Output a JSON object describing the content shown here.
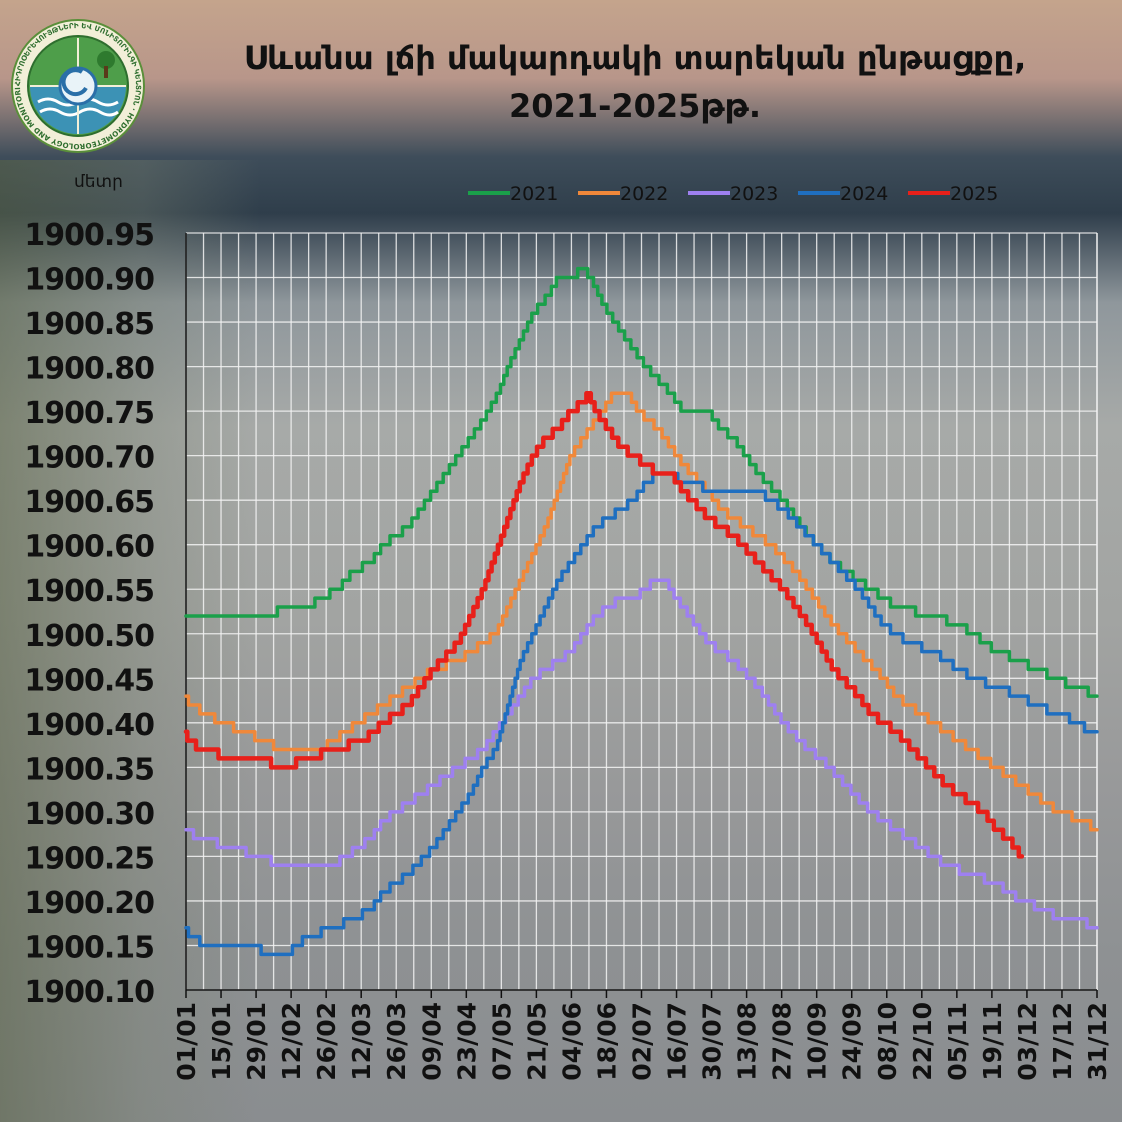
{
  "title_line1": "Սևանա լճի մակարդակի տարեկան ընթացքը,",
  "title_line2": "2021-2025թթ.",
  "logo_text": "ՀԻԴՐՈՕԵՐԵՎՈՒՅԹՆԵՐԻ ԵՎ ՄՈՆԻՏՈՐԻՆԳԻ ԿԵՆՏՐՈՆ · HYDROMETEOROLOGY AND MONITORING CENTER",
  "chart_data": {
    "type": "line",
    "ylabel": "մետր",
    "ylim": [
      1900.1,
      1900.95
    ],
    "yticks": [
      "1900.95",
      "1900.90",
      "1900.85",
      "1900.80",
      "1900.75",
      "1900.70",
      "1900.65",
      "1900.60",
      "1900.55",
      "1900.50",
      "1900.45",
      "1900.40",
      "1900.35",
      "1900.30",
      "1900.25",
      "1900.20",
      "1900.15",
      "1900.10"
    ],
    "xticks": [
      "01/01",
      "15/01",
      "29/01",
      "12/02",
      "26/02",
      "12/03",
      "26/03",
      "09/04",
      "23/04",
      "07/05",
      "21/05",
      "04/06",
      "18/06",
      "02/07",
      "16/07",
      "30/07",
      "13/08",
      "27/08",
      "10/09",
      "24/09",
      "08/10",
      "22/10",
      "05/11",
      "19/11",
      "03/12",
      "17/12",
      "31/12"
    ],
    "grid": true,
    "legend_position": "top",
    "x_unit": "day of year",
    "series": [
      {
        "name": "2021",
        "color": "#1aa04a",
        "points": [
          [
            1,
            1900.52
          ],
          [
            22,
            1900.52
          ],
          [
            35,
            1900.52
          ],
          [
            40,
            1900.53
          ],
          [
            50,
            1900.53
          ],
          [
            55,
            1900.54
          ],
          [
            62,
            1900.55
          ],
          [
            68,
            1900.57
          ],
          [
            75,
            1900.58
          ],
          [
            80,
            1900.6
          ],
          [
            90,
            1900.62
          ],
          [
            100,
            1900.66
          ],
          [
            110,
            1900.7
          ],
          [
            120,
            1900.74
          ],
          [
            126,
            1900.77
          ],
          [
            130,
            1900.8
          ],
          [
            135,
            1900.83
          ],
          [
            140,
            1900.86
          ],
          [
            146,
            1900.88
          ],
          [
            150,
            1900.9
          ],
          [
            155,
            1900.9
          ],
          [
            160,
            1900.91
          ],
          [
            163,
            1900.9
          ],
          [
            168,
            1900.87
          ],
          [
            175,
            1900.84
          ],
          [
            185,
            1900.8
          ],
          [
            195,
            1900.77
          ],
          [
            200,
            1900.75
          ],
          [
            210,
            1900.75
          ],
          [
            215,
            1900.73
          ],
          [
            220,
            1900.72
          ],
          [
            230,
            1900.68
          ],
          [
            240,
            1900.65
          ],
          [
            250,
            1900.61
          ],
          [
            260,
            1900.58
          ],
          [
            270,
            1900.56
          ],
          [
            280,
            1900.54
          ],
          [
            285,
            1900.53
          ],
          [
            300,
            1900.52
          ],
          [
            310,
            1900.51
          ],
          [
            316,
            1900.5
          ],
          [
            325,
            1900.48
          ],
          [
            335,
            1900.47
          ],
          [
            340,
            1900.46
          ],
          [
            350,
            1900.45
          ],
          [
            355,
            1900.44
          ],
          [
            360,
            1900.44
          ],
          [
            363,
            1900.43
          ],
          [
            365,
            1900.43
          ]
        ]
      },
      {
        "name": "2022",
        "color": "#f0883a",
        "points": [
          [
            1,
            1900.43
          ],
          [
            3,
            1900.42
          ],
          [
            10,
            1900.41
          ],
          [
            15,
            1900.4
          ],
          [
            25,
            1900.39
          ],
          [
            32,
            1900.38
          ],
          [
            40,
            1900.37
          ],
          [
            55,
            1900.37
          ],
          [
            60,
            1900.38
          ],
          [
            65,
            1900.39
          ],
          [
            70,
            1900.4
          ],
          [
            80,
            1900.42
          ],
          [
            90,
            1900.44
          ],
          [
            100,
            1900.46
          ],
          [
            110,
            1900.47
          ],
          [
            120,
            1900.49
          ],
          [
            125,
            1900.5
          ],
          [
            130,
            1900.53
          ],
          [
            135,
            1900.56
          ],
          [
            140,
            1900.59
          ],
          [
            145,
            1900.62
          ],
          [
            150,
            1900.66
          ],
          [
            155,
            1900.7
          ],
          [
            160,
            1900.72
          ],
          [
            165,
            1900.74
          ],
          [
            170,
            1900.76
          ],
          [
            172,
            1900.77
          ],
          [
            178,
            1900.77
          ],
          [
            182,
            1900.75
          ],
          [
            190,
            1900.73
          ],
          [
            200,
            1900.69
          ],
          [
            210,
            1900.66
          ],
          [
            215,
            1900.64
          ],
          [
            225,
            1900.62
          ],
          [
            235,
            1900.6
          ],
          [
            245,
            1900.57
          ],
          [
            255,
            1900.53
          ],
          [
            260,
            1900.51
          ],
          [
            270,
            1900.48
          ],
          [
            280,
            1900.45
          ],
          [
            285,
            1900.43
          ],
          [
            290,
            1900.42
          ],
          [
            300,
            1900.4
          ],
          [
            310,
            1900.38
          ],
          [
            320,
            1900.36
          ],
          [
            330,
            1900.34
          ],
          [
            340,
            1900.32
          ],
          [
            350,
            1900.3
          ],
          [
            360,
            1900.29
          ],
          [
            365,
            1900.28
          ]
        ]
      },
      {
        "name": "2023",
        "color": "#9e80f0",
        "points": [
          [
            1,
            1900.28
          ],
          [
            7,
            1900.27
          ],
          [
            20,
            1900.26
          ],
          [
            30,
            1900.25
          ],
          [
            40,
            1900.24
          ],
          [
            60,
            1900.24
          ],
          [
            65,
            1900.25
          ],
          [
            70,
            1900.26
          ],
          [
            75,
            1900.27
          ],
          [
            80,
            1900.29
          ],
          [
            90,
            1900.31
          ],
          [
            100,
            1900.33
          ],
          [
            110,
            1900.35
          ],
          [
            120,
            1900.37
          ],
          [
            125,
            1900.39
          ],
          [
            130,
            1900.41
          ],
          [
            135,
            1900.43
          ],
          [
            140,
            1900.45
          ],
          [
            145,
            1900.46
          ],
          [
            150,
            1900.47
          ],
          [
            155,
            1900.48
          ],
          [
            160,
            1900.5
          ],
          [
            165,
            1900.52
          ],
          [
            170,
            1900.53
          ],
          [
            175,
            1900.54
          ],
          [
            180,
            1900.54
          ],
          [
            185,
            1900.55
          ],
          [
            188,
            1900.56
          ],
          [
            193,
            1900.56
          ],
          [
            197,
            1900.54
          ],
          [
            200,
            1900.53
          ],
          [
            210,
            1900.49
          ],
          [
            220,
            1900.47
          ],
          [
            230,
            1900.44
          ],
          [
            240,
            1900.4
          ],
          [
            250,
            1900.37
          ],
          [
            255,
            1900.36
          ],
          [
            265,
            1900.33
          ],
          [
            275,
            1900.3
          ],
          [
            285,
            1900.28
          ],
          [
            295,
            1900.26
          ],
          [
            305,
            1900.24
          ],
          [
            315,
            1900.23
          ],
          [
            325,
            1900.22
          ],
          [
            335,
            1900.2
          ],
          [
            345,
            1900.19
          ],
          [
            350,
            1900.18
          ],
          [
            360,
            1900.18
          ],
          [
            362,
            1900.17
          ],
          [
            365,
            1900.17
          ]
        ]
      },
      {
        "name": "2024",
        "color": "#1f6fc0",
        "points": [
          [
            1,
            1900.17
          ],
          [
            3,
            1900.16
          ],
          [
            10,
            1900.15
          ],
          [
            30,
            1900.15
          ],
          [
            32,
            1900.14
          ],
          [
            42,
            1900.14
          ],
          [
            45,
            1900.15
          ],
          [
            50,
            1900.16
          ],
          [
            60,
            1900.17
          ],
          [
            68,
            1900.18
          ],
          [
            75,
            1900.19
          ],
          [
            80,
            1900.21
          ],
          [
            90,
            1900.23
          ],
          [
            100,
            1900.26
          ],
          [
            110,
            1900.3
          ],
          [
            115,
            1900.32
          ],
          [
            120,
            1900.35
          ],
          [
            125,
            1900.37
          ],
          [
            130,
            1900.42
          ],
          [
            135,
            1900.47
          ],
          [
            140,
            1900.5
          ],
          [
            145,
            1900.53
          ],
          [
            150,
            1900.56
          ],
          [
            155,
            1900.58
          ],
          [
            160,
            1900.6
          ],
          [
            165,
            1900.62
          ],
          [
            170,
            1900.63
          ],
          [
            175,
            1900.64
          ],
          [
            180,
            1900.65
          ],
          [
            185,
            1900.67
          ],
          [
            190,
            1900.68
          ],
          [
            195,
            1900.68
          ],
          [
            200,
            1900.67
          ],
          [
            205,
            1900.67
          ],
          [
            210,
            1900.66
          ],
          [
            220,
            1900.66
          ],
          [
            230,
            1900.66
          ],
          [
            235,
            1900.65
          ],
          [
            240,
            1900.64
          ],
          [
            250,
            1900.61
          ],
          [
            260,
            1900.58
          ],
          [
            270,
            1900.55
          ],
          [
            280,
            1900.51
          ],
          [
            290,
            1900.49
          ],
          [
            300,
            1900.48
          ],
          [
            310,
            1900.46
          ],
          [
            316,
            1900.45
          ],
          [
            325,
            1900.44
          ],
          [
            335,
            1900.43
          ],
          [
            340,
            1900.42
          ],
          [
            350,
            1900.41
          ],
          [
            358,
            1900.4
          ],
          [
            362,
            1900.39
          ],
          [
            365,
            1900.39
          ]
        ]
      },
      {
        "name": "2025",
        "color": "#e8201a",
        "points": [
          [
            1,
            1900.39
          ],
          [
            2,
            1900.38
          ],
          [
            8,
            1900.37
          ],
          [
            20,
            1900.36
          ],
          [
            30,
            1900.36
          ],
          [
            40,
            1900.35
          ],
          [
            50,
            1900.36
          ],
          [
            60,
            1900.37
          ],
          [
            72,
            1900.38
          ],
          [
            80,
            1900.4
          ],
          [
            90,
            1900.42
          ],
          [
            100,
            1900.46
          ],
          [
            110,
            1900.49
          ],
          [
            115,
            1900.52
          ],
          [
            120,
            1900.55
          ],
          [
            125,
            1900.59
          ],
          [
            130,
            1900.63
          ],
          [
            135,
            1900.67
          ],
          [
            140,
            1900.7
          ],
          [
            145,
            1900.72
          ],
          [
            150,
            1900.73
          ],
          [
            155,
            1900.75
          ],
          [
            160,
            1900.76
          ],
          [
            162,
            1900.77
          ],
          [
            165,
            1900.75
          ],
          [
            170,
            1900.73
          ],
          [
            175,
            1900.71
          ],
          [
            180,
            1900.7
          ],
          [
            185,
            1900.69
          ],
          [
            190,
            1900.68
          ],
          [
            195,
            1900.68
          ],
          [
            200,
            1900.66
          ],
          [
            210,
            1900.63
          ],
          [
            220,
            1900.61
          ],
          [
            230,
            1900.58
          ],
          [
            240,
            1900.55
          ],
          [
            245,
            1900.53
          ],
          [
            250,
            1900.51
          ],
          [
            260,
            1900.46
          ],
          [
            270,
            1900.43
          ],
          [
            275,
            1900.41
          ],
          [
            285,
            1900.39
          ],
          [
            295,
            1900.36
          ],
          [
            305,
            1900.33
          ],
          [
            315,
            1900.31
          ],
          [
            320,
            1900.3
          ],
          [
            325,
            1900.28
          ],
          [
            330,
            1900.27
          ],
          [
            335,
            1900.25
          ]
        ]
      }
    ]
  }
}
